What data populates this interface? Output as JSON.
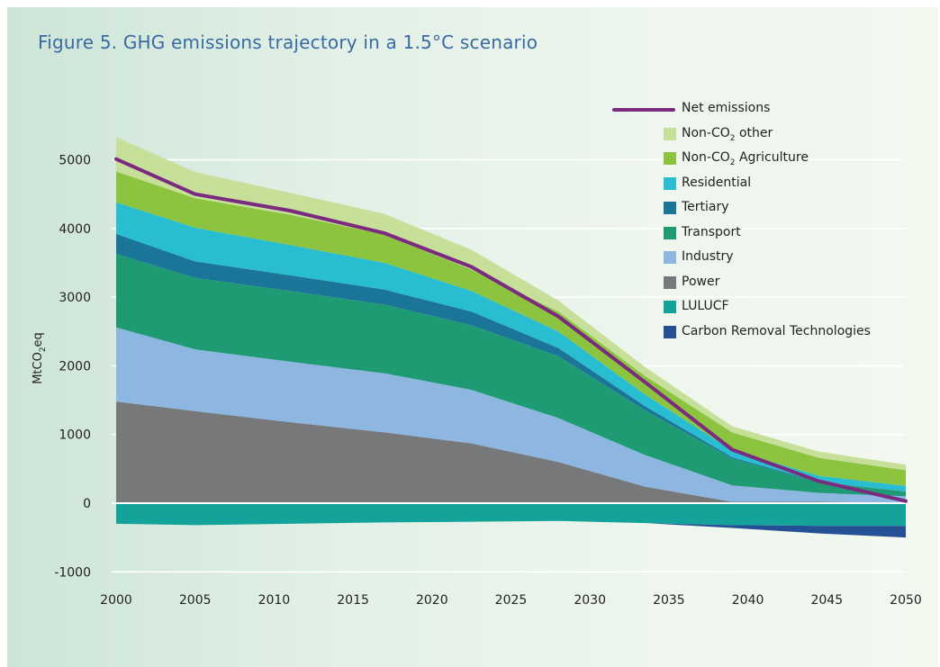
{
  "title": "Figure 5. GHG emissions trajectory in a 1.5°C scenario",
  "chart_data": {
    "type": "area",
    "title": "Figure 5. GHG emissions trajectory in a 1.5°C scenario",
    "ylabel": "MtCO2eq",
    "ylabel_main": "MtCO",
    "ylabel_sub": "2",
    "ylabel_tail": "eq",
    "xlabel": "",
    "xlim": [
      2000,
      2050
    ],
    "ylim": [
      -1000,
      5300
    ],
    "yticks": [
      -1000,
      0,
      1000,
      2000,
      3000,
      4000,
      5000
    ],
    "ytick_labels": [
      "-1000",
      "0",
      "1000",
      "2000",
      "3000",
      "4000",
      "5000"
    ],
    "xticks": [
      2000,
      2005,
      2010,
      2015,
      2020,
      2025,
      2030,
      2035,
      2040,
      2045,
      2050
    ],
    "xtick_labels": [
      "2000",
      "2005",
      "2010",
      "2015",
      "2020",
      "2025",
      "2030",
      "2035",
      "2040",
      "2045",
      "2050"
    ],
    "grid": "horizontal",
    "legend_position": "top-right",
    "x": [
      2000,
      2005,
      2011,
      2017,
      2022.5,
      2028,
      2033.5,
      2039,
      2044.5,
      2050
    ],
    "stacked_series": [
      {
        "name": "Power",
        "color": "#76787a",
        "values": [
          1480,
          1340,
          1180,
          1030,
          870,
          600,
          240,
          20,
          20,
          10
        ]
      },
      {
        "name": "Industry",
        "color": "#8db6e0",
        "values": [
          1080,
          900,
          880,
          860,
          780,
          640,
          460,
          240,
          130,
          90
        ]
      },
      {
        "name": "Transport",
        "color": "#1f9b74",
        "values": [
          1070,
          1040,
          1030,
          1000,
          940,
          900,
          650,
          390,
          150,
          70
        ]
      },
      {
        "name": "Tertiary",
        "color": "#1a7598",
        "values": [
          290,
          240,
          230,
          220,
          200,
          120,
          60,
          20,
          10,
          0
        ]
      },
      {
        "name": "Residential",
        "color": "#29bdd2",
        "values": [
          460,
          490,
          440,
          390,
          300,
          240,
          170,
          100,
          90,
          80
        ]
      },
      {
        "name": "Non-CO₂ Agriculture",
        "color": "#8cc43f",
        "values": [
          450,
          430,
          440,
          410,
          310,
          290,
          270,
          260,
          260,
          230
        ]
      },
      {
        "name": "Non-CO₂ other",
        "color": "#c6e09a",
        "values": [
          500,
          380,
          320,
          300,
          290,
          160,
          130,
          90,
          90,
          80
        ]
      }
    ],
    "negative_series": [
      {
        "name": "LULUCF",
        "color": "#13a39b",
        "values": [
          -300,
          -320,
          -300,
          -280,
          -270,
          -260,
          -290,
          -320,
          -330,
          -330
        ]
      },
      {
        "name": "Carbon Removal Technologies",
        "color": "#244f95",
        "values": [
          0,
          0,
          0,
          0,
          0,
          0,
          0,
          -40,
          -110,
          -170
        ]
      }
    ],
    "line_series": {
      "name": "Net emissions",
      "color": "#7b2a7f",
      "x": [
        2000,
        2005,
        2011,
        2017,
        2022.5,
        2028,
        2033.5,
        2039,
        2044.5,
        2050
      ],
      "values": [
        5010,
        4500,
        4260,
        3930,
        3440,
        2720,
        1760,
        780,
        320,
        30
      ]
    },
    "legend": [
      {
        "kind": "line",
        "main": "Net emissions",
        "sub": "",
        "tail": "",
        "color": "#7b2a7f"
      },
      {
        "kind": "box",
        "main": "Non-CO",
        "sub": "2",
        "tail": " other",
        "color": "#c6e09a"
      },
      {
        "kind": "box",
        "main": "Non-CO",
        "sub": "2",
        "tail": " Agriculture",
        "color": "#8cc43f"
      },
      {
        "kind": "box",
        "main": "Residential",
        "sub": "",
        "tail": "",
        "color": "#29bdd2"
      },
      {
        "kind": "box",
        "main": "Tertiary",
        "sub": "",
        "tail": "",
        "color": "#1a7598"
      },
      {
        "kind": "box",
        "main": "Transport",
        "sub": "",
        "tail": "",
        "color": "#1f9b74"
      },
      {
        "kind": "box",
        "main": "Industry",
        "sub": "",
        "tail": "",
        "color": "#8db6e0"
      },
      {
        "kind": "box",
        "main": "Power",
        "sub": "",
        "tail": "",
        "color": "#76787a"
      },
      {
        "kind": "box",
        "main": "LULUCF",
        "sub": "",
        "tail": "",
        "color": "#13a39b"
      },
      {
        "kind": "box",
        "main": "Carbon Removal Technologies",
        "sub": "",
        "tail": "",
        "color": "#244f95"
      }
    ]
  }
}
